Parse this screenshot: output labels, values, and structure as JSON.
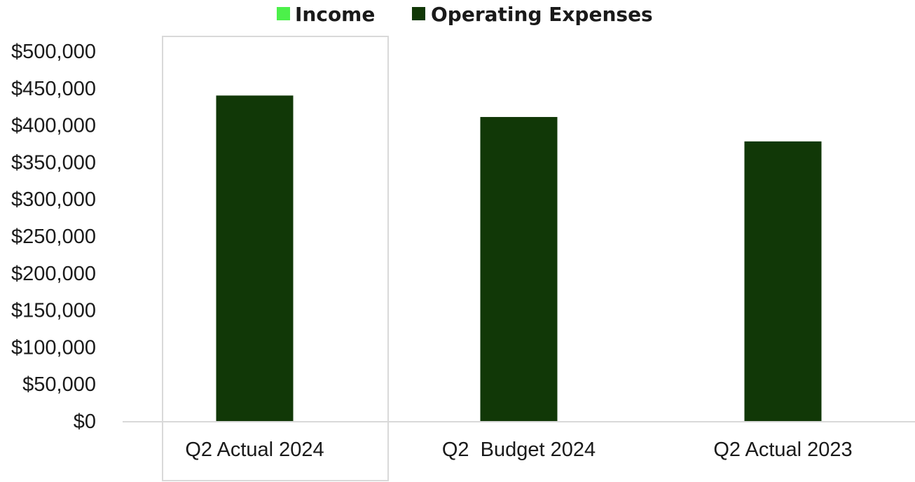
{
  "chart_data": {
    "type": "bar",
    "categories": [
      "Q2 Actual 2024",
      "Q2  Budget 2024",
      "Q2 Actual 2023"
    ],
    "series": [
      {
        "name": "Income",
        "values": [
          null,
          null,
          null
        ],
        "color": "#4cf04a"
      },
      {
        "name": "Operating Expenses",
        "values": [
          440000,
          411000,
          378000
        ],
        "color": "#113807"
      }
    ],
    "y_ticks": [
      "$0",
      "$50,000",
      "$100,000",
      "$150,000",
      "$200,000",
      "$250,000",
      "$300,000",
      "$350,000",
      "$400,000",
      "$450,000",
      "$500,000"
    ],
    "ylim": [
      0,
      500000
    ],
    "title": "",
    "xlabel": "",
    "ylabel": "",
    "legend_position": "top-center",
    "grid": false,
    "selected_category": "Q2 Actual 2024",
    "axis_color": "#d9d9d9",
    "selection_border_color": "#d9d9d9"
  }
}
